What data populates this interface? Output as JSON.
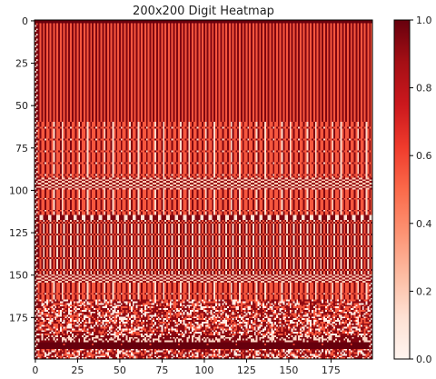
{
  "chart_data": {
    "type": "heatmap",
    "title": "200x200 Digit Heatmap",
    "rows": 200,
    "cols": 200,
    "value_range": [
      0,
      1
    ],
    "colormap": "Reds",
    "xlabel": "",
    "ylabel": "",
    "xlim": [
      0,
      200
    ],
    "ylim": [
      0,
      200
    ],
    "x_ticks": [
      0,
      25,
      50,
      75,
      100,
      125,
      150,
      175
    ],
    "y_ticks": [
      0,
      25,
      50,
      75,
      100,
      125,
      150,
      175
    ],
    "x_tick_labels": [
      "0",
      "25",
      "50",
      "75",
      "100",
      "125",
      "150",
      "175"
    ],
    "y_tick_labels": [
      "0",
      "25",
      "50",
      "75",
      "100",
      "125",
      "150",
      "175"
    ],
    "colorbar": {
      "ticks": [
        0.0,
        0.2,
        0.4,
        0.6,
        0.8,
        1.0
      ],
      "tick_labels": [
        "0.0",
        "0.2",
        "0.4",
        "0.6",
        "0.8",
        "1.0"
      ],
      "color_low": "#fff5f0",
      "color_high": "#67000d"
    },
    "row_bands": [
      {
        "rows": [
          0,
          1
        ],
        "pattern": "solid",
        "value": 1.0
      },
      {
        "rows": [
          2,
          59
        ],
        "pattern": "vertical-stripes",
        "period": 2
      },
      {
        "rows": [
          60,
          92
        ],
        "pattern": "mixed-stripes",
        "period": 3
      },
      {
        "rows": [
          93,
          99
        ],
        "pattern": "wavy",
        "period": 4
      },
      {
        "rows": [
          100,
          114
        ],
        "pattern": "mixed-stripes",
        "period": 3
      },
      {
        "rows": [
          115,
          117
        ],
        "pattern": "dashes",
        "period": 5
      },
      {
        "rows": [
          118,
          149
        ],
        "pattern": "mixed-stripes",
        "period": 2
      },
      {
        "rows": [
          150,
          154
        ],
        "pattern": "wavy",
        "period": 4
      },
      {
        "rows": [
          155,
          164
        ],
        "pattern": "mixed-stripes",
        "period": 3
      },
      {
        "rows": [
          165,
          185
        ],
        "pattern": "noise"
      },
      {
        "rows": [
          186,
          189
        ],
        "pattern": "noise-dense"
      },
      {
        "rows": [
          190,
          193
        ],
        "pattern": "solid-stripe",
        "value": 1.0
      },
      {
        "rows": [
          194,
          199
        ],
        "pattern": "noise"
      }
    ]
  }
}
